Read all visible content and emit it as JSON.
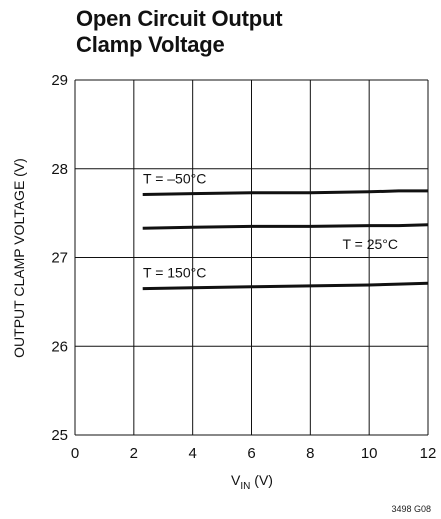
{
  "figure_title_line1": "Open Circuit Output",
  "figure_title_line2": "Clamp Voltage",
  "figure_id": "3498 G08",
  "chart_data": {
    "type": "line",
    "title": "Open Circuit Output Clamp Voltage",
    "xlabel_main": "V",
    "xlabel_sub": "IN",
    "xlabel_unit": " (V)",
    "ylabel": "OUTPUT CLAMP VOLTAGE (V)",
    "xlim": [
      0,
      12
    ],
    "ylim": [
      25,
      29
    ],
    "xticks": [
      0,
      2,
      4,
      6,
      8,
      10,
      12
    ],
    "yticks": [
      25,
      26,
      27,
      28,
      29
    ],
    "grid": true,
    "series": [
      {
        "name": "T = –50°C",
        "x": [
          2.3,
          4,
          6,
          8,
          10,
          11,
          12
        ],
        "y": [
          27.71,
          27.72,
          27.73,
          27.73,
          27.74,
          27.75,
          27.75
        ]
      },
      {
        "name": "T = 25°C",
        "x": [
          2.3,
          4,
          6,
          8,
          10,
          11,
          12
        ],
        "y": [
          27.33,
          27.34,
          27.35,
          27.35,
          27.36,
          27.36,
          27.37
        ]
      },
      {
        "name": "T = 150°C",
        "x": [
          2.3,
          4,
          6,
          8,
          10,
          11,
          12
        ],
        "y": [
          26.65,
          26.66,
          26.67,
          26.68,
          26.69,
          26.7,
          26.71
        ]
      }
    ]
  }
}
